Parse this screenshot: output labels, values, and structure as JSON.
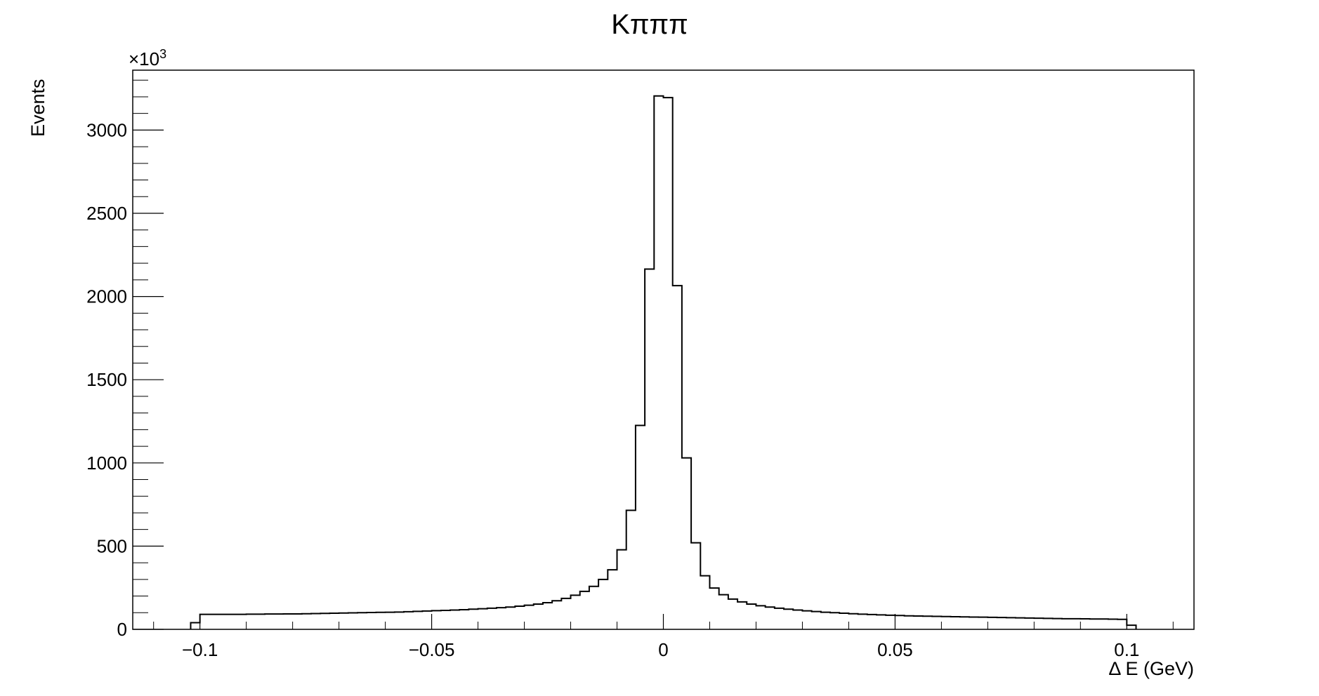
{
  "chart_data": {
    "type": "histogram",
    "title": "Kπππ",
    "xlabel": "Δ E (GeV)",
    "ylabel": "Events",
    "y_multiplier_base": "×10",
    "y_multiplier_exp": "3",
    "xlim": [
      -0.1145,
      0.1145
    ],
    "ylim": [
      0,
      3360
    ],
    "x_ticks": [
      -0.1,
      -0.05,
      0,
      0.05,
      0.1
    ],
    "x_tick_labels": [
      "−0.1",
      "−0.05",
      "0",
      "0.05",
      "0.1"
    ],
    "y_ticks": [
      0,
      500,
      1000,
      1500,
      2000,
      2500,
      3000
    ],
    "y_tick_labels": [
      "0",
      "500",
      "1000",
      "1500",
      "2000",
      "2500",
      "3000"
    ],
    "bin_edges_start": -0.102,
    "bin_width": 0.002,
    "values": [
      40,
      90,
      90,
      90,
      90,
      90,
      91,
      91,
      92,
      92,
      93,
      93,
      94,
      95,
      96,
      97,
      98,
      99,
      100,
      101,
      102,
      103,
      104,
      106,
      108,
      110,
      112,
      114,
      116,
      118,
      121,
      124,
      127,
      130,
      134,
      139,
      145,
      152,
      160,
      172,
      186,
      205,
      228,
      258,
      300,
      358,
      478,
      715,
      1225,
      2165,
      3205,
      3195,
      2065,
      1030,
      520,
      322,
      248,
      208,
      182,
      165,
      152,
      142,
      134,
      127,
      121,
      116,
      111,
      107,
      103,
      100,
      97,
      94,
      91,
      89,
      87,
      85,
      83,
      81,
      80,
      79,
      78,
      77,
      76,
      75,
      74,
      73,
      72,
      71,
      70,
      69,
      68,
      67,
      66,
      65,
      64,
      64,
      63,
      62,
      62,
      61,
      60,
      25
    ]
  }
}
